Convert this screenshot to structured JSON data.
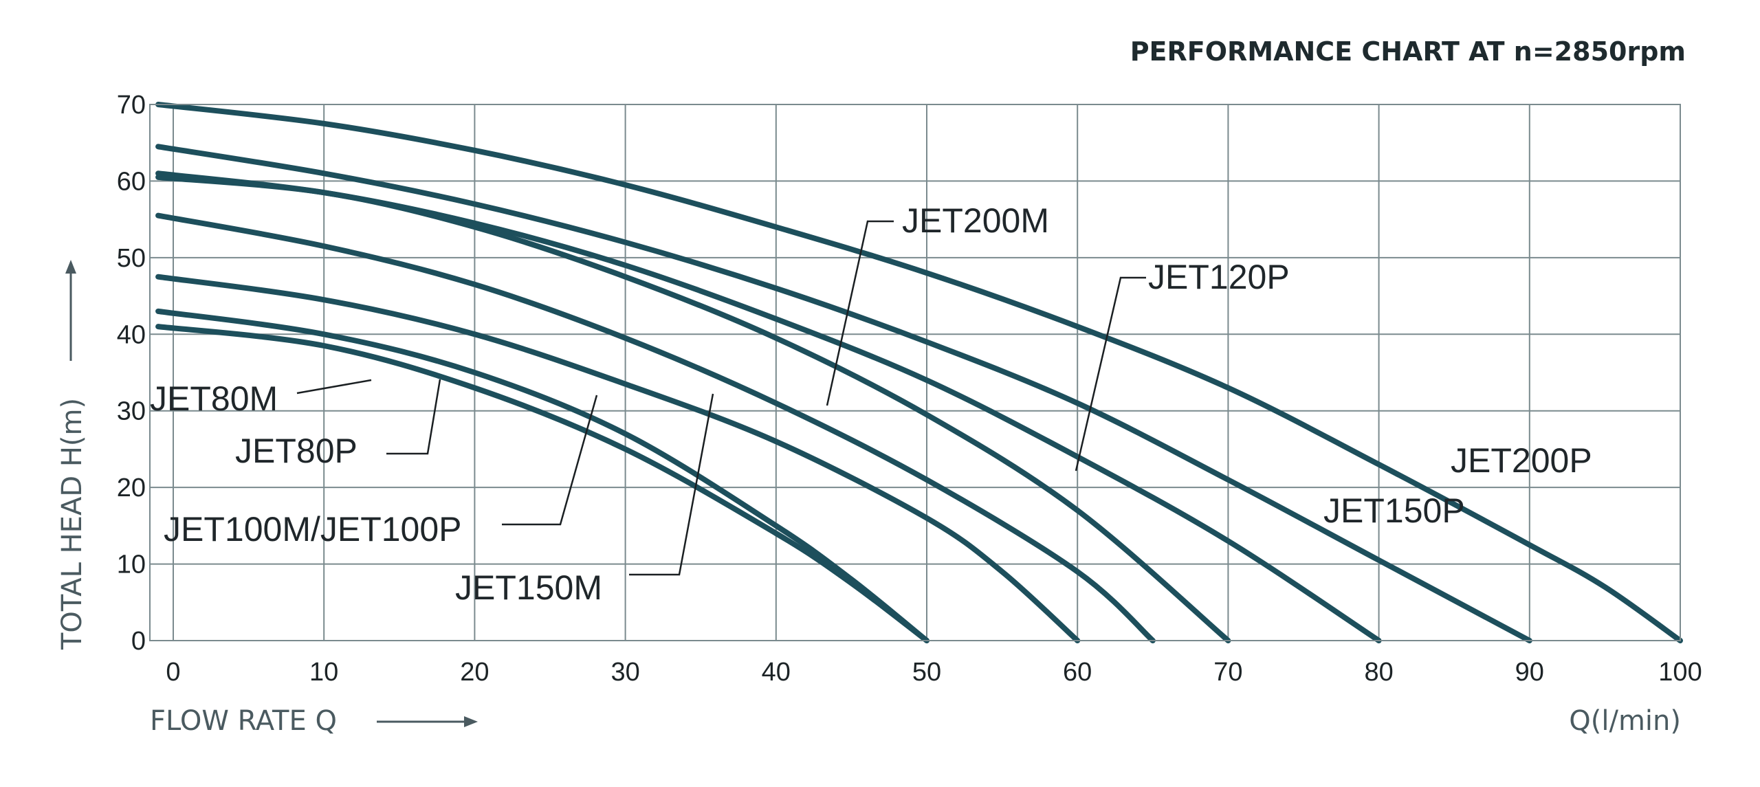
{
  "chart_data": {
    "type": "line",
    "title": "PERFORMANCE CHART AT n=2850rpm",
    "xlabel": "FLOW RATE Q",
    "xunit": "Q(l/min)",
    "ylabel": "TOTAL HEAD H(m)",
    "xlim": [
      0,
      100
    ],
    "ylim": [
      0,
      70
    ],
    "xticks": [
      0,
      10,
      20,
      30,
      40,
      50,
      60,
      70,
      80,
      90,
      100
    ],
    "yticks": [
      0,
      10,
      20,
      30,
      40,
      50,
      60,
      70
    ],
    "grid": true,
    "colors": {
      "curve": "#1d4f5c",
      "grid": "#7a8a8e",
      "text": "#1f262a"
    },
    "series": [
      {
        "name": "JET80M",
        "x": [
          -1,
          10,
          20,
          30,
          40,
          45,
          50
        ],
        "y": [
          41,
          38.5,
          33,
          25,
          14,
          7.5,
          0
        ]
      },
      {
        "name": "JET80P",
        "x": [
          -1,
          10,
          20,
          30,
          40,
          45,
          50
        ],
        "y": [
          43,
          40,
          35,
          27,
          15,
          8,
          0
        ]
      },
      {
        "name": "JET100M/JET100P",
        "x": [
          -1,
          10,
          20,
          30,
          40,
          50,
          55,
          60
        ],
        "y": [
          47.5,
          44.5,
          40,
          33.5,
          26,
          16,
          9,
          0
        ]
      },
      {
        "name": "JET150M",
        "x": [
          -1,
          10,
          20,
          30,
          40,
          50,
          60,
          65
        ],
        "y": [
          55.5,
          51.5,
          46.5,
          39.5,
          31,
          21,
          9,
          0
        ]
      },
      {
        "name": "JET200M",
        "x": [
          -1,
          10,
          20,
          30,
          40,
          50,
          60,
          70
        ],
        "y": [
          60.5,
          58.5,
          54,
          47.5,
          39.5,
          29.5,
          17,
          0
        ]
      },
      {
        "name": "JET120P",
        "x": [
          -1,
          10,
          20,
          30,
          40,
          50,
          60,
          70,
          80
        ],
        "y": [
          61,
          58.5,
          54.5,
          49,
          42,
          34,
          24,
          13,
          0
        ]
      },
      {
        "name": "JET150P",
        "x": [
          -1,
          10,
          20,
          30,
          40,
          50,
          60,
          70,
          80,
          90
        ],
        "y": [
          64.5,
          61,
          57,
          52,
          46,
          39,
          31,
          21,
          10.5,
          0
        ]
      },
      {
        "name": "JET200P",
        "x": [
          -1,
          10,
          20,
          30,
          40,
          50,
          60,
          70,
          80,
          90,
          95,
          100
        ],
        "y": [
          70,
          67.5,
          64,
          59.5,
          54,
          48,
          41,
          33,
          23,
          12.5,
          7,
          0
        ]
      }
    ]
  }
}
